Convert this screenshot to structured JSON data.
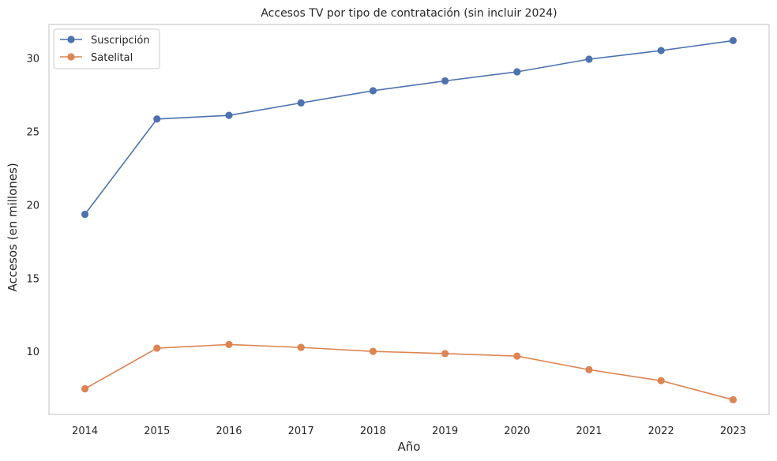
{
  "chart_data": {
    "type": "line",
    "title": "Accesos TV por tipo de contratación (sin incluir 2024)",
    "xlabel": "Año",
    "ylabel": "Accesos (en millones)",
    "categories": [
      "2014",
      "2015",
      "2016",
      "2017",
      "2018",
      "2019",
      "2020",
      "2021",
      "2022",
      "2023"
    ],
    "yticks": [
      10,
      15,
      20,
      25,
      30
    ],
    "ylim": [
      5.7,
      32.3
    ],
    "grid": false,
    "legend_position": "top-left",
    "series": [
      {
        "name": "Suscripción",
        "color": "#4c72b0",
        "values": [
          19.35,
          25.85,
          26.1,
          26.95,
          27.78,
          28.45,
          29.07,
          29.93,
          30.52,
          31.2
        ]
      },
      {
        "name": "Satelital",
        "color": "#dd8452",
        "values": [
          7.45,
          10.22,
          10.47,
          10.27,
          10.0,
          9.85,
          9.68,
          8.75,
          8.0,
          6.7
        ]
      }
    ]
  }
}
